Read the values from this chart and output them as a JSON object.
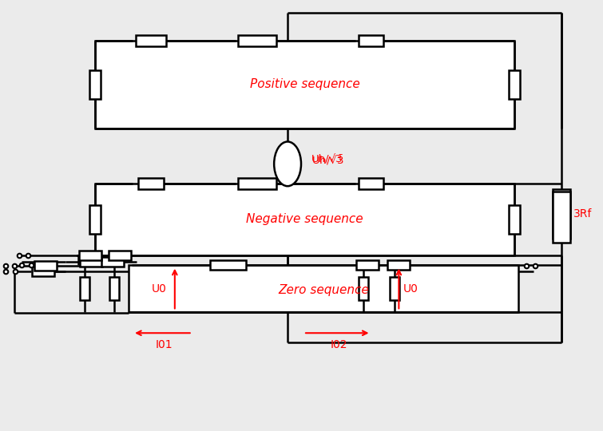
{
  "bg_color": "#ebebeb",
  "line_color": "black",
  "red_color": "#ff0000",
  "lw": 1.8,
  "pos_label": "Positive sequence",
  "neg_label": "Negative sequence",
  "zero_label": "Zero sequence",
  "label_fontsize": 11,
  "source_label": "Uh/√3̅",
  "rf_label": "3Rf",
  "u0_label": "U0",
  "i01_label": "I01",
  "i02_label": "I02"
}
